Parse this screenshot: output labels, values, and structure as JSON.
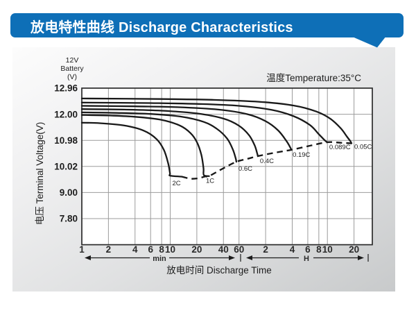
{
  "header": {
    "title": "放电特性曲线 Discharge Characteristics",
    "bg_color": "#0e6fb7",
    "text_color": "#ffffff"
  },
  "colors": {
    "panel_gray": "#c8cacb",
    "plot_background": "#ffffff",
    "gridline": "#9b9b9b",
    "plot_border": "#2b2b2b",
    "curve": "#191919",
    "text": "#1c1c1c"
  },
  "chart_data": {
    "type": "line",
    "title": "放电特性曲线 Discharge Characteristics",
    "annotation": "温度Temperature:35°C",
    "x_axis": {
      "label": "放电时间 Discharge Time",
      "scale": "log",
      "range_min_minutes": 1,
      "range_max_minutes": 1700,
      "sections": [
        {
          "unit": "min",
          "ticks": [
            "1",
            "2",
            "4",
            "6",
            "8",
            "10",
            "20",
            "40",
            "60"
          ]
        },
        {
          "unit": "H",
          "ticks": [
            "2",
            "4",
            "6",
            "8",
            "10",
            "20"
          ]
        }
      ]
    },
    "y_axis": {
      "label": "电压 Terminal Voltage(V)",
      "corner_label": [
        "12V",
        "Battery",
        "(V)"
      ],
      "ticks": [
        "12.96",
        "12.00",
        "10.98",
        "10.02",
        "9.00",
        "7.80"
      ],
      "tick_values": [
        12.96,
        12.0,
        10.98,
        10.02,
        9.0,
        7.8
      ]
    },
    "legend": "none",
    "grid": true,
    "series": [
      {
        "name": "0.05C",
        "knee": {
          "time_min": 1125,
          "voltage": 10.87
        },
        "points_min_V": [
          [
            1,
            12.58
          ],
          [
            8,
            12.56
          ],
          [
            30,
            12.53
          ],
          [
            100,
            12.46
          ],
          [
            250,
            12.32
          ],
          [
            450,
            12.1
          ],
          [
            650,
            11.82
          ],
          [
            850,
            11.45
          ],
          [
            1000,
            11.12
          ],
          [
            1090,
            10.95
          ],
          [
            1125,
            10.87
          ]
        ]
      },
      {
        "name": "0.089C",
        "knee": {
          "time_min": 597,
          "voltage": 10.91
        },
        "points_min_V": [
          [
            1,
            12.43
          ],
          [
            6,
            12.41
          ],
          [
            20,
            12.38
          ],
          [
            60,
            12.31
          ],
          [
            140,
            12.16
          ],
          [
            250,
            11.92
          ],
          [
            380,
            11.58
          ],
          [
            480,
            11.22
          ],
          [
            560,
            10.98
          ],
          [
            597,
            10.91
          ]
        ]
      },
      {
        "name": "0.19C",
        "knee": {
          "time_min": 234,
          "voltage": 10.63
        },
        "points_min_V": [
          [
            1,
            12.31
          ],
          [
            4,
            12.29
          ],
          [
            12,
            12.26
          ],
          [
            35,
            12.17
          ],
          [
            75,
            12.0
          ],
          [
            120,
            11.73
          ],
          [
            165,
            11.38
          ],
          [
            205,
            10.97
          ],
          [
            228,
            10.72
          ],
          [
            234,
            10.63
          ]
        ]
      },
      {
        "name": "0.4C",
        "knee": {
          "time_min": 98,
          "voltage": 10.4
        },
        "points_min_V": [
          [
            1,
            12.19
          ],
          [
            3,
            12.17
          ],
          [
            8,
            12.13
          ],
          [
            20,
            12.03
          ],
          [
            40,
            11.83
          ],
          [
            60,
            11.55
          ],
          [
            78,
            11.18
          ],
          [
            90,
            10.8
          ],
          [
            96,
            10.52
          ],
          [
            98,
            10.4
          ]
        ]
      },
      {
        "name": "0.6C",
        "knee": {
          "time_min": 56,
          "voltage": 10.19
        },
        "points_min_V": [
          [
            1,
            12.07
          ],
          [
            2.5,
            12.05
          ],
          [
            6,
            12.01
          ],
          [
            13,
            11.91
          ],
          [
            24,
            11.7
          ],
          [
            34,
            11.42
          ],
          [
            44,
            11.05
          ],
          [
            51,
            10.65
          ],
          [
            55,
            10.32
          ],
          [
            56,
            10.19
          ]
        ]
      },
      {
        "name": "1C",
        "knee": {
          "time_min": 24,
          "voltage": 9.68
        },
        "points_min_V": [
          [
            1,
            11.97
          ],
          [
            2,
            11.95
          ],
          [
            4,
            11.9
          ],
          [
            8,
            11.78
          ],
          [
            13,
            11.55
          ],
          [
            17,
            11.26
          ],
          [
            20,
            10.92
          ],
          [
            22.5,
            10.45
          ],
          [
            23.8,
            9.95
          ],
          [
            24,
            9.68
          ],
          [
            27.5,
            9.64
          ]
        ]
      },
      {
        "name": "2C",
        "knee": {
          "time_min": 10,
          "voltage": 9.66
        },
        "points_min_V": [
          [
            1,
            11.67
          ],
          [
            1.6,
            11.65
          ],
          [
            3,
            11.56
          ],
          [
            5,
            11.36
          ],
          [
            7,
            11.03
          ],
          [
            8.5,
            10.62
          ],
          [
            9.5,
            10.12
          ],
          [
            9.95,
            9.75
          ],
          [
            10,
            9.66
          ],
          [
            13.5,
            9.62
          ]
        ]
      }
    ],
    "capacity_line": {
      "style": "dashed",
      "points_min_V": [
        [
          13.5,
          9.62
        ],
        [
          17,
          9.54
        ],
        [
          21,
          9.56
        ],
        [
          25,
          9.63
        ],
        [
          27.5,
          9.64
        ],
        [
          40,
          9.95
        ],
        [
          56,
          10.19
        ],
        [
          75,
          10.3
        ],
        [
          98,
          10.4
        ],
        [
          150,
          10.52
        ],
        [
          234,
          10.63
        ],
        [
          380,
          10.78
        ],
        [
          597,
          10.91
        ],
        [
          850,
          10.89
        ],
        [
          1125,
          10.87
        ]
      ]
    }
  }
}
